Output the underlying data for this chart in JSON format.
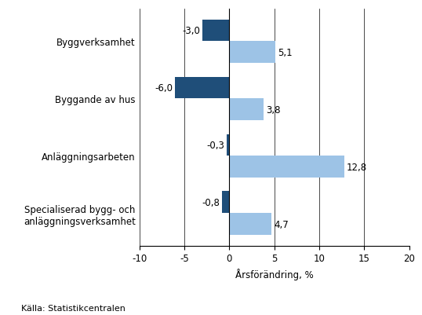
{
  "categories": [
    "Byggverksamhet",
    "Byggande av hus",
    "Anläggningsarbeten",
    "Specialiserad bygg- och\nanläggningsverksamhet"
  ],
  "series1_values": [
    -3.0,
    -6.0,
    -0.3,
    -0.8
  ],
  "series2_values": [
    5.1,
    3.8,
    12.8,
    4.7
  ],
  "series1_color": "#1F4E79",
  "series2_color": "#9DC3E6",
  "xlabel": "Årsförändring, %",
  "source": "Källa: Statistikcentralen",
  "xlim": [
    -10,
    20
  ],
  "xticks": [
    -10,
    -5,
    0,
    5,
    10,
    15,
    20
  ],
  "bar_height": 0.38,
  "background_color": "#ffffff",
  "label_fontsize": 8.5,
  "tick_fontsize": 8.5
}
